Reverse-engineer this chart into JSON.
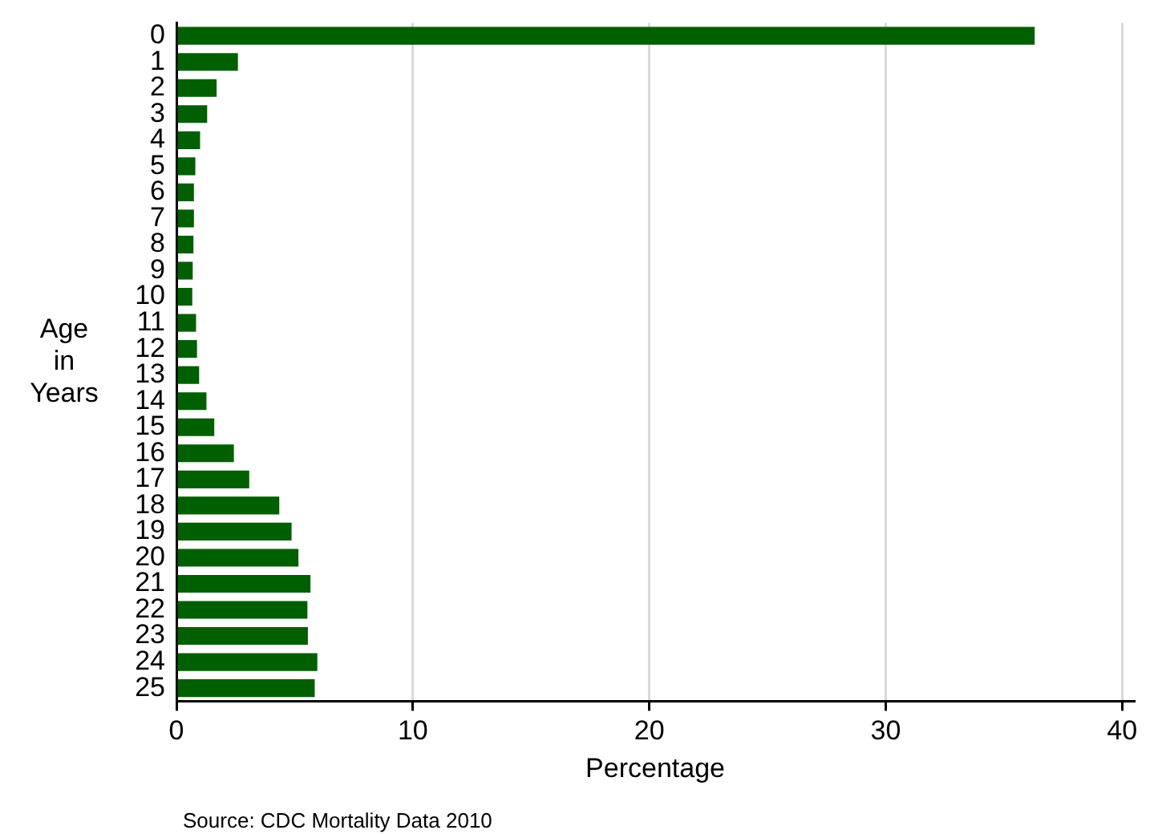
{
  "chart_data": {
    "type": "bar",
    "orientation": "horizontal",
    "xlabel": "Percentage",
    "ylabel": "Age in Years",
    "categories": [
      "0",
      "1",
      "2",
      "3",
      "4",
      "5",
      "6",
      "7",
      "8",
      "9",
      "10",
      "11",
      "12",
      "13",
      "14",
      "15",
      "16",
      "17",
      "18",
      "19",
      "20",
      "21",
      "22",
      "23",
      "24",
      "25"
    ],
    "values": [
      36.3,
      2.6,
      1.7,
      1.3,
      1.0,
      0.8,
      0.74,
      0.74,
      0.72,
      0.69,
      0.67,
      0.83,
      0.87,
      0.96,
      1.27,
      1.6,
      2.43,
      3.08,
      4.35,
      4.87,
      5.16,
      5.67,
      5.54,
      5.56,
      5.96,
      5.85
    ],
    "color": "#005f00",
    "xlim": [
      0,
      40.5
    ],
    "xticks": [
      0,
      10,
      20,
      30,
      40
    ],
    "grid": "x",
    "legend": false,
    "annotations": [
      "Source: CDC Mortality Data 2010"
    ]
  }
}
